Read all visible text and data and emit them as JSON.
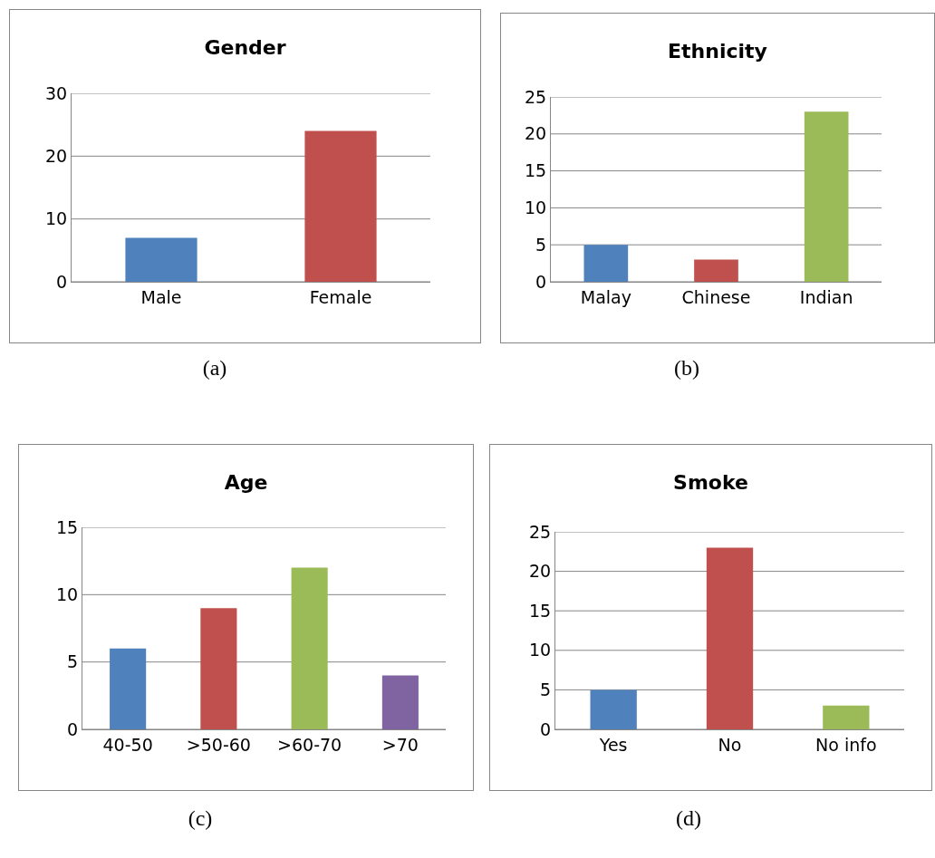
{
  "chart_data": [
    {
      "type": "bar",
      "title": "Gender",
      "categories": [
        "Male",
        "Female"
      ],
      "values": [
        7,
        24
      ],
      "colors": [
        "#4f81bd",
        "#c0504d"
      ],
      "ylim": [
        0,
        30
      ],
      "yticks": [
        0,
        10,
        20,
        30
      ],
      "grid": "y",
      "annotations": [
        "(a)"
      ]
    },
    {
      "type": "bar",
      "title": "Ethnicity",
      "categories": [
        "Malay",
        "Chinese",
        "Indian"
      ],
      "values": [
        5,
        3,
        23
      ],
      "colors": [
        "#4f81bd",
        "#c0504d",
        "#9bbb59"
      ],
      "ylim": [
        0,
        25
      ],
      "yticks": [
        0,
        5,
        10,
        15,
        20,
        25
      ],
      "grid": "y",
      "annotations": [
        "(b)"
      ]
    },
    {
      "type": "bar",
      "title": "Age",
      "categories": [
        "40-50",
        ">50-60",
        ">60-70",
        ">70"
      ],
      "values": [
        6,
        9,
        12,
        4
      ],
      "colors": [
        "#4f81bd",
        "#c0504d",
        "#9bbb59",
        "#8064a2"
      ],
      "ylim": [
        0,
        15
      ],
      "yticks": [
        0,
        5,
        10,
        15
      ],
      "grid": "y",
      "annotations": [
        "(c)"
      ]
    },
    {
      "type": "bar",
      "title": "Smoke",
      "categories": [
        "Yes",
        "No",
        "No info"
      ],
      "values": [
        5,
        23,
        3
      ],
      "colors": [
        "#4f81bd",
        "#c0504d",
        "#9bbb59"
      ],
      "ylim": [
        0,
        25
      ],
      "yticks": [
        0,
        5,
        10,
        15,
        20,
        25
      ],
      "grid": "y",
      "annotations": [
        "(d)"
      ]
    }
  ]
}
